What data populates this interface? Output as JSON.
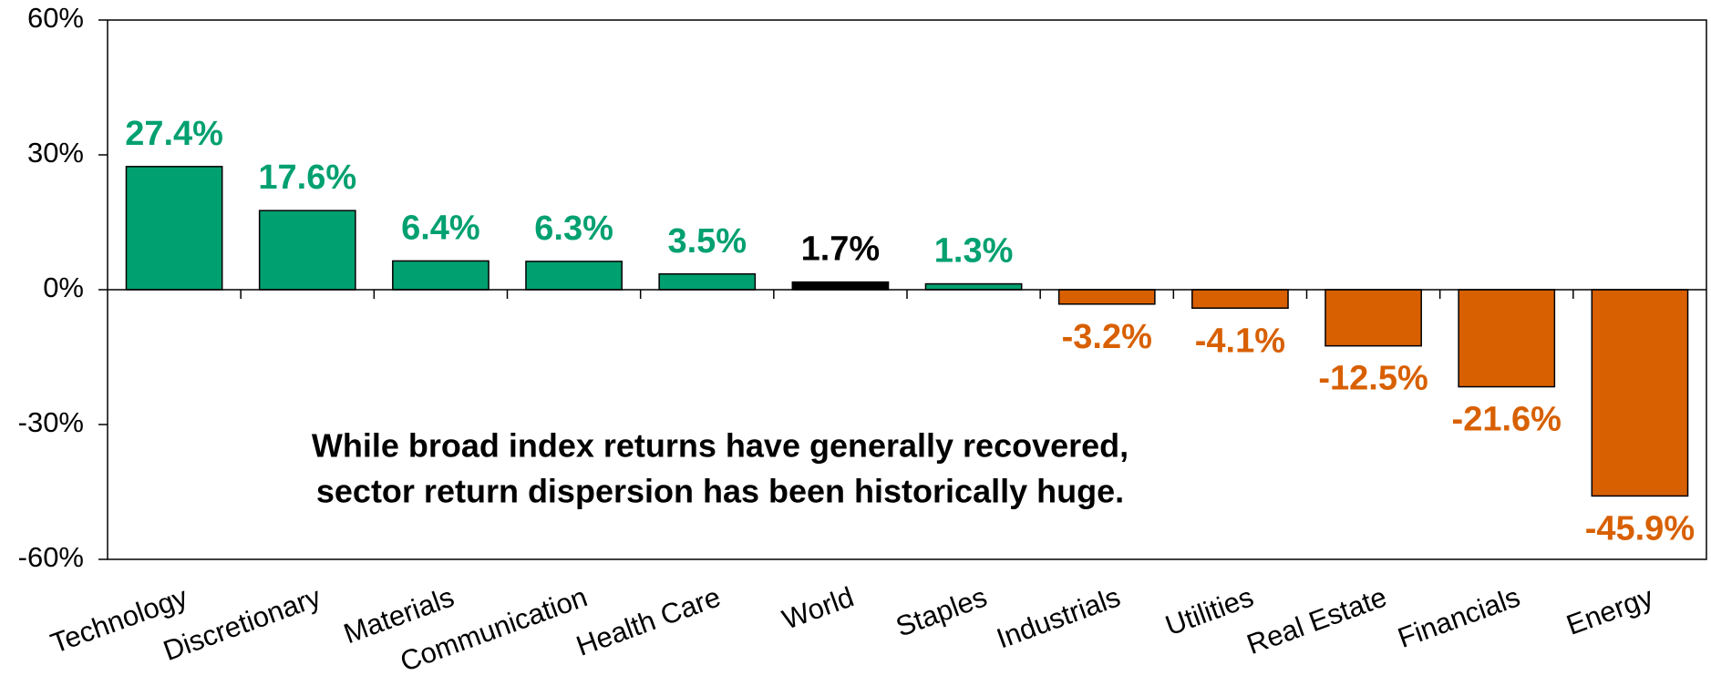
{
  "chart_data": {
    "type": "bar",
    "categories": [
      "Technology",
      "Discretionary",
      "Materials",
      "Communication",
      "Health Care",
      "World",
      "Staples",
      "Industrials",
      "Utilities",
      "Real Estate",
      "Financials",
      "Energy"
    ],
    "values": [
      27.4,
      17.6,
      6.4,
      6.3,
      3.5,
      1.7,
      1.3,
      -3.2,
      -4.1,
      -12.5,
      -21.6,
      -45.9
    ],
    "value_labels": [
      "27.4%",
      "17.6%",
      "6.4%",
      "6.3%",
      "3.5%",
      "1.7%",
      "1.3%",
      "-3.2%",
      "-4.1%",
      "-12.5%",
      "-21.6%",
      "-45.9%"
    ],
    "colors": [
      "#00a070",
      "#00a070",
      "#00a070",
      "#00a070",
      "#00a070",
      "#000000",
      "#00a070",
      "#d86000",
      "#d86000",
      "#d86000",
      "#d86000",
      "#d86000"
    ],
    "ylim": [
      -60,
      60
    ],
    "yticks": [
      {
        "value": -60,
        "label": "-60%"
      },
      {
        "value": -30,
        "label": "-30%"
      },
      {
        "value": 0,
        "label": "0%"
      },
      {
        "value": 30,
        "label": "30%"
      },
      {
        "value": 60,
        "label": "60%"
      }
    ],
    "annotation": [
      "While broad index returns have generally recovered,",
      "sector return dispersion has been historically huge."
    ]
  }
}
